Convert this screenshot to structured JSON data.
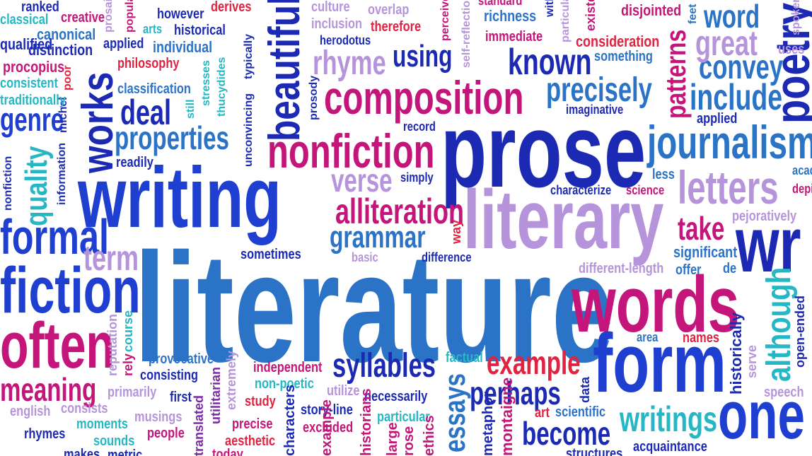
{
  "palette": {
    "blue": "#1f3fd1",
    "mid_blue": "#2a73c6",
    "navy": "#1c2ab3",
    "magenta": "#c4167a",
    "red": "#e02340",
    "lavender": "#b694db",
    "teal": "#25b7c4",
    "purple": "#7b2aa6"
  },
  "words": [
    {
      "text": "literature",
      "color": "mid_blue"
    },
    {
      "text": "writing",
      "color": "blue"
    },
    {
      "text": "prose",
      "color": "navy"
    },
    {
      "text": "literary",
      "color": "lavender"
    },
    {
      "text": "words",
      "color": "magenta"
    },
    {
      "text": "form",
      "color": "blue"
    },
    {
      "text": "nonfiction",
      "color": "magenta"
    },
    {
      "text": "composition",
      "color": "magenta"
    },
    {
      "text": "journalism",
      "color": "mid_blue"
    },
    {
      "text": "fiction",
      "color": "blue"
    },
    {
      "text": "often",
      "color": "magenta"
    },
    {
      "text": "formal",
      "color": "blue"
    },
    {
      "text": "letters",
      "color": "lavender"
    },
    {
      "text": "beautiful",
      "color": "navy"
    },
    {
      "text": "works",
      "color": "navy"
    },
    {
      "text": "known",
      "color": "navy"
    },
    {
      "text": "precisely",
      "color": "mid_blue"
    },
    {
      "text": "include",
      "color": "mid_blue"
    },
    {
      "text": "convey",
      "color": "mid_blue"
    },
    {
      "text": "great",
      "color": "lavender"
    },
    {
      "text": "word",
      "color": "mid_blue"
    },
    {
      "text": "alliteration",
      "color": "magenta"
    },
    {
      "text": "grammar",
      "color": "mid_blue"
    },
    {
      "text": "verse",
      "color": "lavender"
    },
    {
      "text": "rhyme",
      "color": "lavender"
    },
    {
      "text": "using",
      "color": "navy"
    },
    {
      "text": "patterns",
      "color": "magenta"
    },
    {
      "text": "take",
      "color": "magenta"
    },
    {
      "text": "syllables",
      "color": "navy"
    },
    {
      "text": "example",
      "color": "red"
    },
    {
      "text": "perhaps",
      "color": "navy"
    },
    {
      "text": "become",
      "color": "navy"
    },
    {
      "text": "writings",
      "color": "teal"
    },
    {
      "text": "essays",
      "color": "mid_blue"
    },
    {
      "text": "although",
      "color": "teal"
    },
    {
      "text": "one",
      "color": "blue"
    },
    {
      "text": "deal",
      "color": "navy"
    },
    {
      "text": "properties",
      "color": "mid_blue"
    },
    {
      "text": "genre",
      "color": "blue"
    },
    {
      "text": "meaning",
      "color": "magenta"
    },
    {
      "text": "quality",
      "color": "teal"
    },
    {
      "text": "term",
      "color": "lavender"
    },
    {
      "text": "poetry",
      "color": "navy"
    },
    {
      "text": "wr",
      "color": "navy"
    },
    {
      "text": "significant",
      "color": "mid_blue"
    },
    {
      "text": "pejoratively",
      "color": "lavender"
    },
    {
      "text": "different-length",
      "color": "lavender"
    },
    {
      "text": "offer",
      "color": "mid_blue"
    },
    {
      "text": "de",
      "color": "mid_blue"
    },
    {
      "text": "area",
      "color": "mid_blue"
    },
    {
      "text": "names",
      "color": "red"
    },
    {
      "text": "historically",
      "color": "navy"
    },
    {
      "text": "serve",
      "color": "lavender"
    },
    {
      "text": "open-ended",
      "color": "navy"
    },
    {
      "text": "speech",
      "color": "lavender"
    },
    {
      "text": "acquaintance",
      "color": "navy"
    },
    {
      "text": "structures",
      "color": "navy"
    },
    {
      "text": "art",
      "color": "red"
    },
    {
      "text": "scientific",
      "color": "mid_blue"
    },
    {
      "text": "data",
      "color": "navy"
    },
    {
      "text": "montaigne",
      "color": "magenta"
    },
    {
      "text": "metaphor",
      "color": "navy"
    },
    {
      "text": "factual",
      "color": "teal"
    },
    {
      "text": "independent",
      "color": "magenta"
    },
    {
      "text": "non-poetic",
      "color": "teal"
    },
    {
      "text": "utilize",
      "color": "lavender"
    },
    {
      "text": "necessarily",
      "color": "navy"
    },
    {
      "text": "study",
      "color": "red"
    },
    {
      "text": "story-line",
      "color": "navy"
    },
    {
      "text": "particular",
      "color": "teal"
    },
    {
      "text": "precise",
      "color": "magenta"
    },
    {
      "text": "excluded",
      "color": "magenta"
    },
    {
      "text": "aesthetic",
      "color": "red"
    },
    {
      "text": "today",
      "color": "magenta"
    },
    {
      "text": "historians",
      "color": "magenta"
    },
    {
      "text": "characters",
      "color": "navy"
    },
    {
      "text": "ethics",
      "color": "magenta"
    },
    {
      "text": "large",
      "color": "magenta"
    },
    {
      "text": "rose",
      "color": "magenta"
    },
    {
      "text": "people",
      "color": "magenta"
    },
    {
      "text": "example",
      "color": "magenta"
    },
    {
      "text": "provocative",
      "color": "mid_blue"
    },
    {
      "text": "consisting",
      "color": "navy"
    },
    {
      "text": "primarily",
      "color": "lavender"
    },
    {
      "text": "first",
      "color": "navy"
    },
    {
      "text": "english",
      "color": "lavender"
    },
    {
      "text": "consists",
      "color": "lavender"
    },
    {
      "text": "musings",
      "color": "lavender"
    },
    {
      "text": "moments",
      "color": "teal"
    },
    {
      "text": "rhymes",
      "color": "navy"
    },
    {
      "text": "sounds",
      "color": "teal"
    },
    {
      "text": "makes",
      "color": "navy"
    },
    {
      "text": "metric",
      "color": "navy"
    },
    {
      "text": "translated",
      "color": "purple"
    },
    {
      "text": "utilitarian",
      "color": "purple"
    },
    {
      "text": "extremely",
      "color": "lavender"
    },
    {
      "text": "reputation",
      "color": "lavender"
    },
    {
      "text": "rely",
      "color": "magenta"
    },
    {
      "text": "course",
      "color": "teal"
    },
    {
      "text": "sometimes",
      "color": "navy"
    },
    {
      "text": "basic",
      "color": "lavender"
    },
    {
      "text": "difference",
      "color": "navy"
    },
    {
      "text": "way",
      "color": "red"
    },
    {
      "text": "simply",
      "color": "navy"
    },
    {
      "text": "record",
      "color": "navy"
    },
    {
      "text": "characterize",
      "color": "navy"
    },
    {
      "text": "science",
      "color": "magenta"
    },
    {
      "text": "less",
      "color": "mid_blue"
    },
    {
      "text": "prosody",
      "color": "navy"
    },
    {
      "text": "unconvincing",
      "color": "navy"
    },
    {
      "text": "readily",
      "color": "navy"
    },
    {
      "text": "information",
      "color": "navy"
    },
    {
      "text": "michel",
      "color": "navy"
    },
    {
      "text": "nonfiction",
      "color": "navy"
    },
    {
      "text": "traditionally",
      "color": "teal"
    },
    {
      "text": "consistent",
      "color": "teal"
    },
    {
      "text": "procopius",
      "color": "magenta"
    },
    {
      "text": "poor",
      "color": "red"
    },
    {
      "text": "philosophy",
      "color": "red"
    },
    {
      "text": "classification",
      "color": "mid_blue"
    },
    {
      "text": "still",
      "color": "teal"
    },
    {
      "text": "stresses",
      "color": "teal"
    },
    {
      "text": "thucydides",
      "color": "teal"
    },
    {
      "text": "typically",
      "color": "navy"
    },
    {
      "text": "applied",
      "color": "navy"
    },
    {
      "text": "individual",
      "color": "mid_blue"
    },
    {
      "text": "distinction",
      "color": "navy"
    },
    {
      "text": "canonical",
      "color": "mid_blue"
    },
    {
      "text": "qualified",
      "color": "navy"
    },
    {
      "text": "classical",
      "color": "teal"
    },
    {
      "text": "creative",
      "color": "magenta"
    },
    {
      "text": "ranked",
      "color": "navy"
    },
    {
      "text": "however",
      "color": "navy"
    },
    {
      "text": "historical",
      "color": "navy"
    },
    {
      "text": "arts",
      "color": "teal"
    },
    {
      "text": "derives",
      "color": "red"
    },
    {
      "text": "popular",
      "color": "magenta"
    },
    {
      "text": "prosaic",
      "color": "lavender"
    },
    {
      "text": "culture",
      "color": "lavender"
    },
    {
      "text": "inclusion",
      "color": "lavender"
    },
    {
      "text": "herodotus",
      "color": "navy"
    },
    {
      "text": "overlap",
      "color": "lavender"
    },
    {
      "text": "therefore",
      "color": "red"
    },
    {
      "text": "perceive",
      "color": "magenta"
    },
    {
      "text": "self-reflection",
      "color": "lavender"
    },
    {
      "text": "richness",
      "color": "mid_blue"
    },
    {
      "text": "standard",
      "color": "magenta"
    },
    {
      "text": "immediate",
      "color": "magenta"
    },
    {
      "text": "particularly",
      "color": "lavender"
    },
    {
      "text": "with",
      "color": "navy"
    },
    {
      "text": "consideration",
      "color": "red"
    },
    {
      "text": "something",
      "color": "mid_blue"
    },
    {
      "text": "existence",
      "color": "magenta"
    },
    {
      "text": "disjointed",
      "color": "magenta"
    },
    {
      "text": "uses",
      "color": "navy"
    },
    {
      "text": "spoken",
      "color": "navy"
    },
    {
      "text": "feet",
      "color": "lavender"
    },
    {
      "text": "academic",
      "color": "lavender"
    },
    {
      "text": "imaginative",
      "color": "mid_blue"
    },
    {
      "text": "applied",
      "color": "mid_blue"
    },
    {
      "text": "depict",
      "color": "magenta"
    },
    {
      "text": "structure",
      "color": "navy"
    }
  ]
}
